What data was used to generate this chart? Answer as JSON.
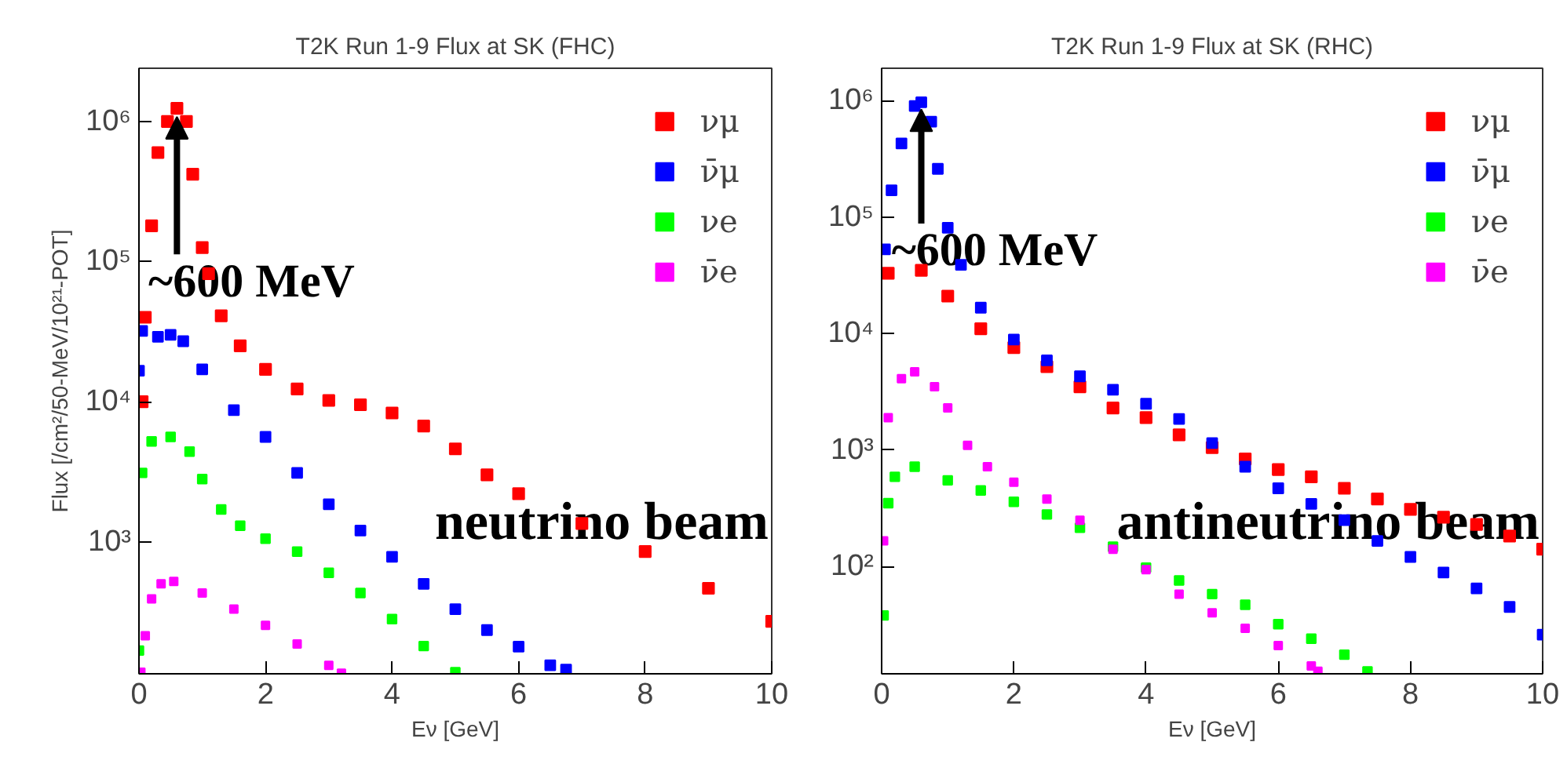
{
  "chart_data": [
    {
      "type": "scatter",
      "title": "T2K Run 1-9 Flux at SK (FHC)",
      "xlabel": "Eν [GeV]",
      "ylabel": "Flux [/cm²/50-MeV/10²¹-POT]",
      "log": "y",
      "grid": false,
      "legend": "top right",
      "marker": "square",
      "xlim": [
        0,
        10
      ],
      "xticks": [
        0,
        2,
        4,
        6,
        8,
        10
      ],
      "ylim": [
        114,
        2400000
      ],
      "yticks": [
        {
          "value": 1000,
          "label": "10³"
        },
        {
          "value": 10000,
          "label": "10⁴"
        },
        {
          "value": 100000,
          "label": "10⁵"
        },
        {
          "value": 1000000,
          "label": "10⁶"
        }
      ],
      "annotations": [
        {
          "text": "~600 MeV",
          "x": 0.6,
          "y": 1240000
        },
        "neutrino beam"
      ],
      "series": [
        {
          "name": "νμ",
          "color": "#ff0000",
          "x": [
            0.05,
            0.1,
            0.2,
            0.3,
            0.45,
            0.6,
            0.75,
            0.85,
            1.0,
            1.1,
            1.3,
            1.6,
            2.0,
            2.5,
            3.0,
            3.5,
            4.0,
            4.5,
            5.0,
            5.5,
            6.0,
            7.0,
            8.0,
            9.0,
            10.0
          ],
          "values": [
            10000,
            40000,
            180000,
            600000,
            1000000,
            1240000,
            1000000,
            420000,
            126000,
            82000,
            41000,
            25000,
            17000,
            12300,
            10200,
            9500,
            8300,
            6700,
            4600,
            3000,
            2200,
            1350,
            850,
            465,
            270
          ]
        },
        {
          "name": "ν̄μ",
          "color": "#0000ff",
          "x": [
            0.0,
            0.05,
            0.3,
            0.5,
            0.7,
            1.0,
            1.5,
            2.0,
            2.5,
            3.0,
            3.5,
            4.0,
            4.5,
            5.0,
            5.5,
            6.0,
            6.5,
            6.75
          ],
          "values": [
            16600,
            32000,
            29000,
            30000,
            27000,
            17000,
            8700,
            5600,
            3100,
            1850,
            1200,
            780,
            500,
            330,
            234,
            178,
            131,
            122
          ]
        },
        {
          "name": "νe",
          "color": "#00ff00",
          "x": [
            0.0,
            0.05,
            0.2,
            0.5,
            0.8,
            1.0,
            1.3,
            1.6,
            2.0,
            2.5,
            3.0,
            3.5,
            4.0,
            4.5,
            5.0
          ],
          "values": [
            167,
            3100,
            5200,
            5600,
            4400,
            2800,
            1700,
            1300,
            1050,
            850,
            600,
            430,
            280,
            180,
            117
          ]
        },
        {
          "name": "ν̄e",
          "color": "#ff00ff",
          "x": [
            0.03,
            0.1,
            0.2,
            0.35,
            0.55,
            1.0,
            1.5,
            2.0,
            2.5,
            3.0,
            3.2
          ],
          "values": [
            117,
            213,
            390,
            500,
            520,
            430,
            330,
            253,
            186,
            131,
            115
          ]
        }
      ]
    },
    {
      "type": "scatter",
      "title": "T2K Run 1-9 Flux at SK (RHC)",
      "xlabel": "Eν [GeV]",
      "log": "y",
      "grid": false,
      "legend": "top right",
      "marker": "square",
      "xlim": [
        0,
        10
      ],
      "xticks": [
        0,
        2,
        4,
        6,
        8,
        10
      ],
      "ylim": [
        12,
        1900000
      ],
      "yticks": [
        {
          "value": 100,
          "label": "10²"
        },
        {
          "value": 1000,
          "label": "10³"
        },
        {
          "value": 10000,
          "label": "10⁴"
        },
        {
          "value": 100000,
          "label": "10⁵"
        },
        {
          "value": 1000000,
          "label": "10⁶"
        }
      ],
      "annotations": [
        {
          "text": "~600 MeV",
          "x": 0.6,
          "y": 970000
        },
        "antineutrino beam"
      ],
      "series": [
        {
          "name": "νμ",
          "color": "#ff0000",
          "x": [
            0.1,
            0.6,
            1.0,
            1.5,
            2.0,
            2.5,
            3.0,
            3.5,
            4.0,
            4.5,
            5.0,
            5.5,
            6.0,
            6.5,
            7.0,
            7.5,
            8.0,
            8.5,
            9.0,
            9.5,
            10.0
          ],
          "values": [
            33000,
            35000,
            21000,
            11000,
            7600,
            5200,
            3500,
            2300,
            1900,
            1350,
            1050,
            840,
            680,
            590,
            470,
            380,
            310,
            265,
            230,
            183,
            141
          ]
        },
        {
          "name": "ν̄μ",
          "color": "#0000ff",
          "x": [
            0.05,
            0.15,
            0.3,
            0.5,
            0.6,
            0.75,
            0.85,
            1.0,
            1.2,
            1.5,
            2.0,
            2.5,
            3.0,
            3.5,
            4.0,
            4.5,
            5.0,
            5.5,
            6.0,
            6.5,
            7.0,
            7.5,
            8.0,
            8.5,
            9.0,
            9.5,
            10.0
          ],
          "values": [
            53000,
            170000,
            430000,
            900000,
            970000,
            660000,
            260000,
            81000,
            39000,
            16700,
            8900,
            5900,
            4300,
            3300,
            2500,
            1850,
            1150,
            720,
            470,
            345,
            250,
            166,
            121,
            89,
            65,
            45,
            26
          ]
        },
        {
          "name": "νe",
          "color": "#00ff00",
          "x": [
            0.03,
            0.1,
            0.2,
            0.5,
            1.0,
            1.5,
            2.0,
            2.5,
            3.0,
            3.5,
            4.0,
            4.5,
            5.0,
            5.5,
            6.0,
            6.5,
            7.0,
            7.35
          ],
          "values": [
            38,
            350,
            590,
            720,
            550,
            450,
            360,
            280,
            215,
            148,
            98,
            76,
            58,
            47,
            32,
            24,
            17.5,
            12.6
          ]
        },
        {
          "name": "ν̄e",
          "color": "#ff00ff",
          "x": [
            0.03,
            0.1,
            0.3,
            0.5,
            0.8,
            1.0,
            1.3,
            1.6,
            2.0,
            2.5,
            3.0,
            3.5,
            4.0,
            4.5,
            5.0,
            5.5,
            6.0,
            6.5,
            6.6
          ],
          "values": [
            166,
            1900,
            4100,
            4700,
            3500,
            2300,
            1100,
            720,
            530,
            380,
            250,
            141,
            94,
            58,
            40,
            29.5,
            21,
            14,
            12.6
          ]
        }
      ]
    }
  ]
}
